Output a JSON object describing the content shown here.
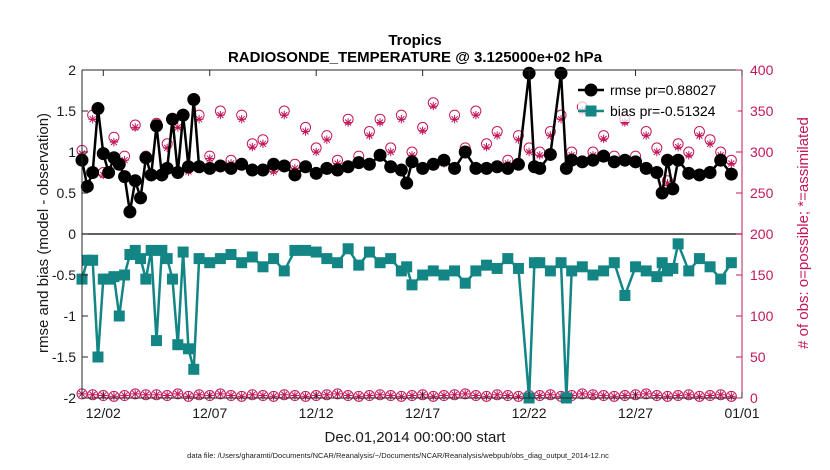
{
  "chart_data": {
    "type": "line",
    "title": "Tropics",
    "subtitle": "RADIOSONDE_TEMPERATURE @ 3.125000e+02 hPa",
    "xlabel": "Dec.01,2014 00:00:00 start",
    "ylabel": "rmse and bias (model - observation)",
    "ylabel_right": "# of obs: o=possible; *=assimilated",
    "footnote": "data file: /Users/gharamti/Documents/NCAR/Reanalysis/~/Documents/NCAR/Reanalysis/webpub/obs_diag_output_2014-12.nc",
    "xlim": [
      0,
      31
    ],
    "ylim": [
      -2,
      2
    ],
    "ylim_right": [
      0,
      400
    ],
    "x_ticks": [
      1,
      6,
      11,
      16,
      21,
      26,
      31
    ],
    "x_tick_labels": [
      "12/02",
      "12/07",
      "12/12",
      "12/17",
      "12/22",
      "12/27",
      "01/01"
    ],
    "y_ticks": [
      -2,
      -1.5,
      -1,
      -0.5,
      0,
      0.5,
      1,
      1.5,
      2
    ],
    "y_tick_labels": [
      "-2",
      "-1.5",
      "-1",
      "-0.5",
      "0",
      "0.5",
      "1",
      "1.5",
      "2"
    ],
    "y_ticks_right": [
      0,
      50,
      100,
      150,
      200,
      250,
      300,
      350,
      400
    ],
    "y_tick_labels_right": [
      "0",
      "50",
      "100",
      "150",
      "200",
      "250",
      "300",
      "350",
      "400"
    ],
    "legend": {
      "position": "top-right",
      "entries": [
        "rmse pr=0.88027",
        "bias pr=-0.51324"
      ]
    },
    "colors": {
      "rmse": "#000000",
      "bias": "#138585",
      "obs": "#c2185b",
      "zero_line": "#000000"
    },
    "series": [
      {
        "name": "rmse",
        "x": [
          0.0,
          0.25,
          0.5,
          0.75,
          1.0,
          1.25,
          1.5,
          1.75,
          2.0,
          2.25,
          2.5,
          2.75,
          3.0,
          3.25,
          3.5,
          3.75,
          4.0,
          4.25,
          4.5,
          4.75,
          5.0,
          5.25,
          5.5,
          6.0,
          6.5,
          7.0,
          7.5,
          8.0,
          8.5,
          9.0,
          9.5,
          10.0,
          10.5,
          11.0,
          11.5,
          12.0,
          12.5,
          13.0,
          13.5,
          14.0,
          14.5,
          15.0,
          15.25,
          15.5,
          16.0,
          16.5,
          17.0,
          17.5,
          18.0,
          18.5,
          19.0,
          19.5,
          20.0,
          20.5,
          21.0,
          21.25,
          21.5,
          22.0,
          22.5,
          22.75,
          23.0,
          23.5,
          24.0,
          24.5,
          25.0,
          25.5,
          26.0,
          26.5,
          27.0,
          27.25,
          27.5,
          27.75,
          28.0,
          28.5,
          29.0,
          29.5,
          30.0,
          30.5
        ],
        "values": [
          0.9,
          0.58,
          0.75,
          1.53,
          0.98,
          0.75,
          0.93,
          0.85,
          0.7,
          0.27,
          0.65,
          0.44,
          0.93,
          0.72,
          1.32,
          0.72,
          0.8,
          1.4,
          0.75,
          1.45,
          0.82,
          1.64,
          0.82,
          0.8,
          0.83,
          0.8,
          0.85,
          0.78,
          0.78,
          0.85,
          0.83,
          0.72,
          0.82,
          0.74,
          0.8,
          0.78,
          0.82,
          0.87,
          0.85,
          0.96,
          0.82,
          0.78,
          0.62,
          0.88,
          0.8,
          0.85,
          0.9,
          0.8,
          1.0,
          0.8,
          0.8,
          0.82,
          0.8,
          0.85,
          1.96,
          0.82,
          0.8,
          0.97,
          1.96,
          0.8,
          0.9,
          0.88,
          0.9,
          0.95,
          0.88,
          0.9,
          0.88,
          0.8,
          0.75,
          0.5,
          0.9,
          0.55,
          0.9,
          0.74,
          0.72,
          0.75,
          0.9,
          0.73
        ]
      },
      {
        "name": "bias",
        "x": [
          0.0,
          0.25,
          0.5,
          0.75,
          1.0,
          1.25,
          1.5,
          1.75,
          2.0,
          2.25,
          2.5,
          2.75,
          3.0,
          3.25,
          3.5,
          3.75,
          4.0,
          4.25,
          4.5,
          4.75,
          5.0,
          5.25,
          5.5,
          6.0,
          6.5,
          7.0,
          7.5,
          8.0,
          8.5,
          9.0,
          9.5,
          10.0,
          10.5,
          11.0,
          11.5,
          12.0,
          12.5,
          13.0,
          13.5,
          14.0,
          14.5,
          15.0,
          15.25,
          15.5,
          16.0,
          16.5,
          17.0,
          17.5,
          18.0,
          18.5,
          19.0,
          19.5,
          20.0,
          20.5,
          21.0,
          21.25,
          21.5,
          22.0,
          22.5,
          22.75,
          23.0,
          23.5,
          24.0,
          24.5,
          25.0,
          25.5,
          26.0,
          26.5,
          27.0,
          27.25,
          27.5,
          27.75,
          28.0,
          28.5,
          29.0,
          29.5,
          30.0,
          30.5
        ],
        "values": [
          -0.55,
          -0.32,
          -0.32,
          -1.5,
          -0.55,
          -0.55,
          -0.52,
          -1.0,
          -0.5,
          -0.25,
          -0.2,
          -0.3,
          -0.55,
          -0.2,
          -1.3,
          -0.2,
          -0.3,
          -0.55,
          -1.35,
          -0.22,
          -1.4,
          -1.65,
          -0.3,
          -0.35,
          -0.3,
          -0.25,
          -0.35,
          -0.28,
          -0.4,
          -0.3,
          -0.45,
          -0.2,
          -0.2,
          -0.22,
          -0.3,
          -0.35,
          -0.18,
          -0.38,
          -0.22,
          -0.35,
          -0.3,
          -0.45,
          -0.4,
          -0.62,
          -0.5,
          -0.45,
          -0.5,
          -0.45,
          -0.6,
          -0.45,
          -0.38,
          -0.42,
          -0.3,
          -0.42,
          -2.0,
          -0.35,
          -0.35,
          -0.45,
          -0.35,
          -2.0,
          -0.45,
          -0.4,
          -0.5,
          -0.45,
          -0.35,
          -0.75,
          -0.4,
          -0.45,
          -0.52,
          -0.35,
          -0.45,
          -0.42,
          -0.12,
          -0.45,
          -0.3,
          -0.4,
          -0.55,
          -0.35
        ]
      },
      {
        "name": "obs_possible",
        "axis": "right",
        "x": [
          0.0,
          0.5,
          1.0,
          1.5,
          2.0,
          2.5,
          3.0,
          3.5,
          4.0,
          4.5,
          5.0,
          5.5,
          6.0,
          6.5,
          7.0,
          7.5,
          8.0,
          8.5,
          9.0,
          9.5,
          10.0,
          10.5,
          11.0,
          11.5,
          12.0,
          12.5,
          13.0,
          13.5,
          14.0,
          14.5,
          15.0,
          15.5,
          16.0,
          16.5,
          17.0,
          17.5,
          18.0,
          18.5,
          19.0,
          19.5,
          20.0,
          20.5,
          21.0,
          21.5,
          22.0,
          22.5,
          23.0,
          23.5,
          24.0,
          24.5,
          25.0,
          25.5,
          26.0,
          26.5,
          27.0,
          27.5,
          28.0,
          28.5,
          29.0,
          29.5,
          30.0,
          30.5
        ],
        "values": [
          302,
          345,
          275,
          318,
          295,
          333,
          295,
          335,
          310,
          335,
          280,
          345,
          295,
          350,
          290,
          345,
          310,
          315,
          280,
          350,
          285,
          330,
          305,
          320,
          290,
          340,
          295,
          325,
          340,
          305,
          345,
          300,
          330,
          360,
          290,
          345,
          305,
          350,
          310,
          325,
          290,
          320,
          305,
          300,
          325,
          345,
          300,
          355,
          300,
          320,
          295,
          340,
          295,
          325,
          305,
          265,
          310,
          300,
          325,
          315,
          300,
          290
        ]
      },
      {
        "name": "obs_assimilated",
        "axis": "right",
        "x": [
          0.0,
          0.5,
          1.0,
          1.5,
          2.0,
          2.5,
          3.0,
          3.5,
          4.0,
          4.5,
          5.0,
          5.5,
          6.0,
          6.5,
          7.0,
          7.5,
          8.0,
          8.5,
          9.0,
          9.5,
          10.0,
          10.5,
          11.0,
          11.5,
          12.0,
          12.5,
          13.0,
          13.5,
          14.0,
          14.5,
          15.0,
          15.5,
          16.0,
          16.5,
          17.0,
          17.5,
          18.0,
          18.5,
          19.0,
          19.5,
          20.0,
          20.5,
          21.0,
          21.5,
          22.0,
          22.5,
          23.0,
          23.5,
          24.0,
          24.5,
          25.0,
          25.5,
          26.0,
          26.5,
          27.0,
          27.5,
          28.0,
          28.5,
          29.0,
          29.5,
          30.0,
          30.5
        ],
        "values": [
          298,
          340,
          272,
          312,
          290,
          330,
          290,
          330,
          305,
          330,
          276,
          340,
          292,
          345,
          286,
          340,
          306,
          310,
          276,
          345,
          280,
          325,
          300,
          315,
          286,
          336,
          290,
          320,
          336,
          300,
          340,
          296,
          326,
          356,
          286,
          340,
          300,
          345,
          306,
          320,
          286,
          315,
          300,
          296,
          320,
          340,
          296,
          350,
          296,
          316,
          290,
          336,
          290,
          320,
          300,
          262,
          306,
          296,
          320,
          310,
          296,
          286
        ]
      },
      {
        "name": "obs_possible_bias",
        "axis": "right",
        "x": [
          0.0,
          0.5,
          1.0,
          1.5,
          2.0,
          2.5,
          3.0,
          3.5,
          4.0,
          4.5,
          5.0,
          5.5,
          6.0,
          6.5,
          7.0,
          7.5,
          8.0,
          8.5,
          9.0,
          9.5,
          10.0,
          10.5,
          11.0,
          11.5,
          12.0,
          12.5,
          13.0,
          13.5,
          14.0,
          14.5,
          15.0,
          15.5,
          16.0,
          16.5,
          17.0,
          17.5,
          18.0,
          18.5,
          19.0,
          19.5,
          20.0,
          20.5,
          21.0,
          21.5,
          22.0,
          22.5,
          23.0,
          23.5,
          24.0,
          24.5,
          25.0,
          25.5,
          26.0,
          26.5,
          27.0,
          27.5,
          28.0,
          28.5,
          29.0,
          29.5,
          30.0,
          30.5
        ],
        "values": [
          5,
          4,
          3,
          2,
          3,
          5,
          4,
          4,
          3,
          5,
          2,
          4,
          3,
          5,
          3,
          2,
          4,
          3,
          2,
          4,
          3,
          2,
          3,
          4,
          5,
          3,
          2,
          3,
          4,
          3,
          2,
          3,
          4,
          2,
          3,
          4,
          5,
          3,
          2,
          4,
          3,
          2,
          3,
          3,
          4,
          2,
          3,
          5,
          4,
          3,
          2,
          3,
          4,
          5,
          3,
          2,
          3,
          4,
          2,
          3,
          4,
          2
        ]
      }
    ]
  }
}
